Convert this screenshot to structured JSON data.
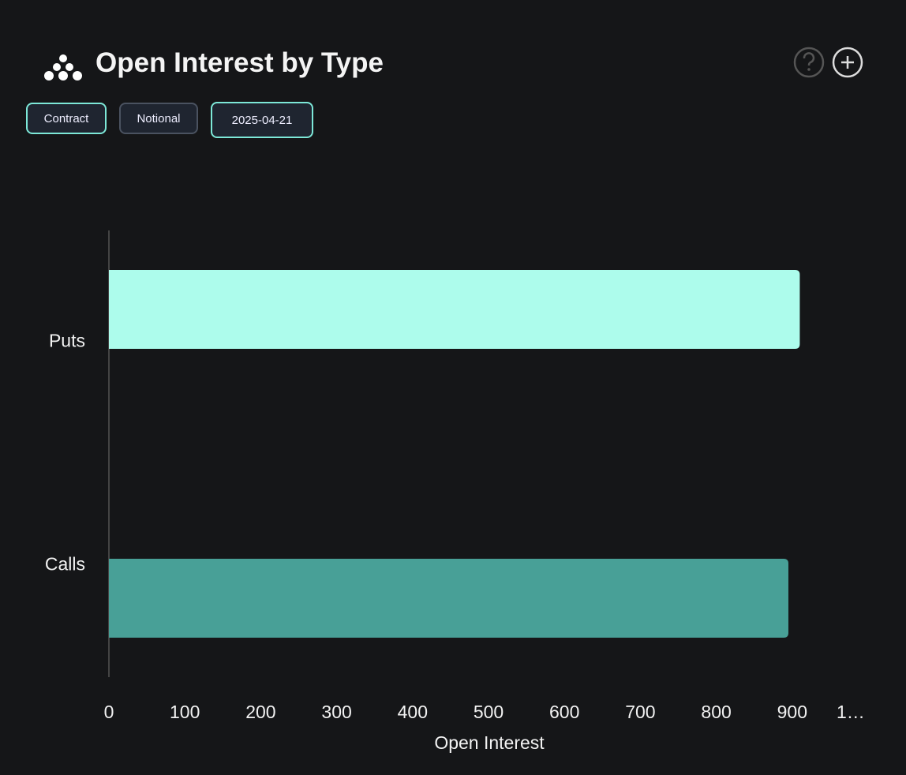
{
  "header": {
    "title": "Open Interest by Type"
  },
  "controls": {
    "buttons": [
      "Contract",
      "Notional",
      "2025-04-21"
    ]
  },
  "chart_data": {
    "type": "bar",
    "orientation": "horizontal",
    "categories": [
      "Puts",
      "Calls"
    ],
    "values": [
      910,
      895
    ],
    "colors": [
      "#adfcec",
      "#48a097"
    ],
    "xlabel": "Open Interest",
    "xlim": [
      0,
      1000
    ],
    "xticks": [
      0,
      100,
      200,
      300,
      400,
      500,
      600,
      700,
      800,
      900,
      {
        "value": 1000,
        "label": "1…"
      }
    ]
  }
}
